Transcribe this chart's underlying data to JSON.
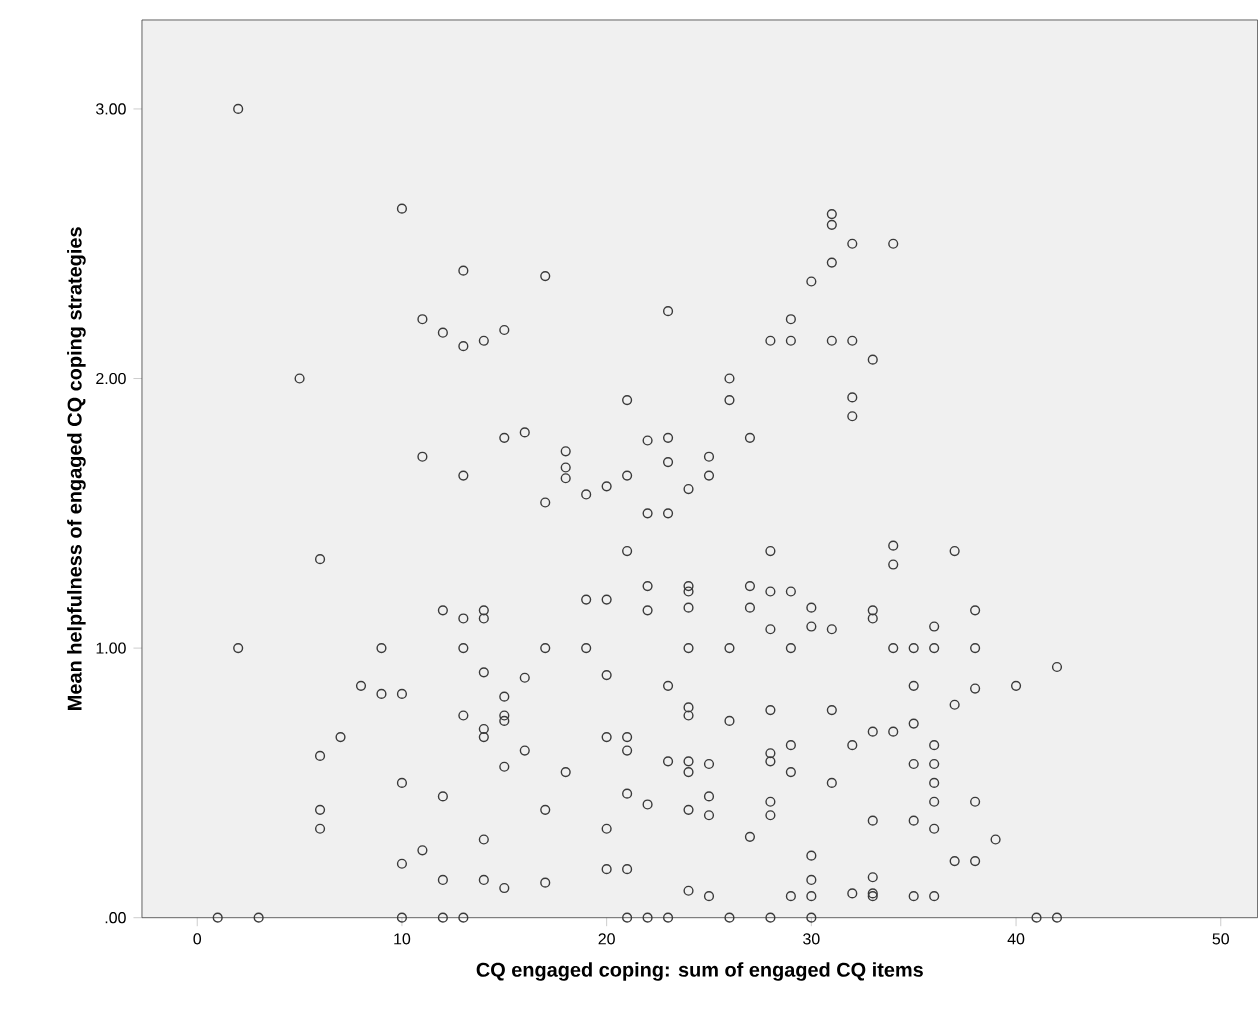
{
  "chart_data": {
    "type": "scatter",
    "xlabel": "CQ engaged coping: sum of engaged CQ items",
    "ylabel": "Mean helpfulness of engaged CQ coping strategies",
    "xlim": [
      -2.7,
      51.8
    ],
    "ylim": [
      0,
      3.33
    ],
    "xticks": [
      0,
      10,
      20,
      30,
      40,
      50
    ],
    "yticks": [
      {
        "value": 0,
        "label": ".00"
      },
      {
        "value": 1,
        "label": "1.00"
      },
      {
        "value": 2,
        "label": "2.00"
      },
      {
        "value": 3,
        "label": "3.00"
      }
    ],
    "marker": "circle",
    "series": [
      {
        "color": "#3a3a3a",
        "x": [
          1,
          2,
          2,
          3,
          5,
          6,
          6,
          6,
          6,
          7,
          8,
          9,
          9,
          10,
          10,
          10,
          10,
          10,
          11,
          11,
          11,
          12,
          12,
          12,
          12,
          12,
          13,
          13,
          13,
          13,
          13,
          13,
          13,
          14,
          14,
          14,
          14,
          14,
          14,
          14,
          14,
          15,
          15,
          15,
          15,
          15,
          15,
          15,
          16,
          16,
          16,
          17,
          17,
          17,
          17,
          17,
          18,
          18,
          18,
          18,
          19,
          19,
          19,
          20,
          20,
          20,
          20,
          20,
          20,
          21,
          21,
          21,
          21,
          21,
          21,
          21,
          21,
          22,
          22,
          22,
          22,
          22,
          22,
          23,
          23,
          23,
          23,
          23,
          23,
          23,
          24,
          24,
          24,
          24,
          24,
          24,
          24,
          24,
          24,
          24,
          24,
          25,
          25,
          25,
          25,
          25,
          25,
          26,
          26,
          26,
          26,
          26,
          27,
          27,
          27,
          27,
          28,
          28,
          28,
          28,
          28,
          28,
          28,
          28,
          28,
          28,
          29,
          29,
          29,
          29,
          29,
          29,
          29,
          30,
          30,
          30,
          30,
          30,
          30,
          30,
          31,
          31,
          31,
          31,
          31,
          31,
          31,
          32,
          32,
          32,
          32,
          32,
          32,
          33,
          33,
          33,
          33,
          33,
          33,
          33,
          33,
          34,
          34,
          34,
          34,
          34,
          35,
          35,
          35,
          35,
          35,
          35,
          36,
          36,
          36,
          36,
          36,
          36,
          36,
          36,
          37,
          37,
          37,
          38,
          38,
          38,
          38,
          38,
          39,
          40,
          41,
          42,
          42
        ],
        "values": [
          0,
          3.0,
          1.0,
          0,
          2.0,
          1.33,
          0.6,
          0.4,
          0.33,
          0.67,
          0.86,
          1.0,
          0.83,
          2.63,
          0.83,
          0.5,
          0.2,
          0,
          2.22,
          1.71,
          0.25,
          2.17,
          1.14,
          0.45,
          0.14,
          0,
          2.4,
          2.12,
          1.64,
          1.11,
          1.0,
          0.75,
          0,
          2.14,
          1.14,
          1.11,
          0.91,
          0.7,
          0.67,
          0.29,
          0.14,
          2.18,
          1.78,
          0.82,
          0.75,
          0.73,
          0.56,
          0.11,
          1.8,
          0.89,
          0.62,
          2.38,
          1.54,
          1.0,
          0.4,
          0.13,
          1.73,
          1.67,
          1.63,
          0.54,
          1.57,
          1.18,
          1.0,
          1.6,
          1.18,
          0.9,
          0.67,
          0.33,
          0.18,
          1.92,
          1.64,
          1.36,
          0.67,
          0.62,
          0.46,
          0.18,
          0,
          1.77,
          1.5,
          1.23,
          1.14,
          0.42,
          0,
          2.25,
          1.78,
          1.69,
          1.5,
          0.86,
          0.58,
          0,
          1.59,
          1.23,
          1.21,
          1.15,
          1.0,
          0.78,
          0.75,
          0.58,
          0.54,
          0.4,
          0.1,
          1.71,
          1.64,
          0.57,
          0.45,
          0.38,
          0.08,
          2.0,
          1.92,
          1.0,
          0.73,
          0,
          1.78,
          1.23,
          1.15,
          0.3,
          2.14,
          1.36,
          1.21,
          1.07,
          0.77,
          0.61,
          0.58,
          0.43,
          0.38,
          0,
          2.22,
          2.14,
          1.21,
          1.0,
          0.64,
          0.54,
          0.08,
          2.36,
          1.15,
          1.08,
          0.23,
          0.14,
          0.08,
          0,
          2.61,
          2.57,
          2.43,
          2.14,
          1.07,
          0.77,
          0.5,
          2.5,
          2.14,
          1.93,
          1.86,
          0.64,
          0.09,
          2.07,
          1.14,
          1.11,
          0.69,
          0.36,
          0.15,
          0.09,
          0.08,
          2.5,
          1.38,
          1.31,
          1.0,
          0.69,
          1.0,
          0.86,
          0.72,
          0.57,
          0.36,
          0.08,
          1.08,
          1.0,
          0.64,
          0.57,
          0.5,
          0.43,
          0.33,
          0.08,
          1.36,
          0.79,
          0.21,
          1.14,
          1.0,
          0.85,
          0.43,
          0.21,
          0.29,
          0.86,
          0,
          0.93,
          0
        ]
      }
    ]
  }
}
